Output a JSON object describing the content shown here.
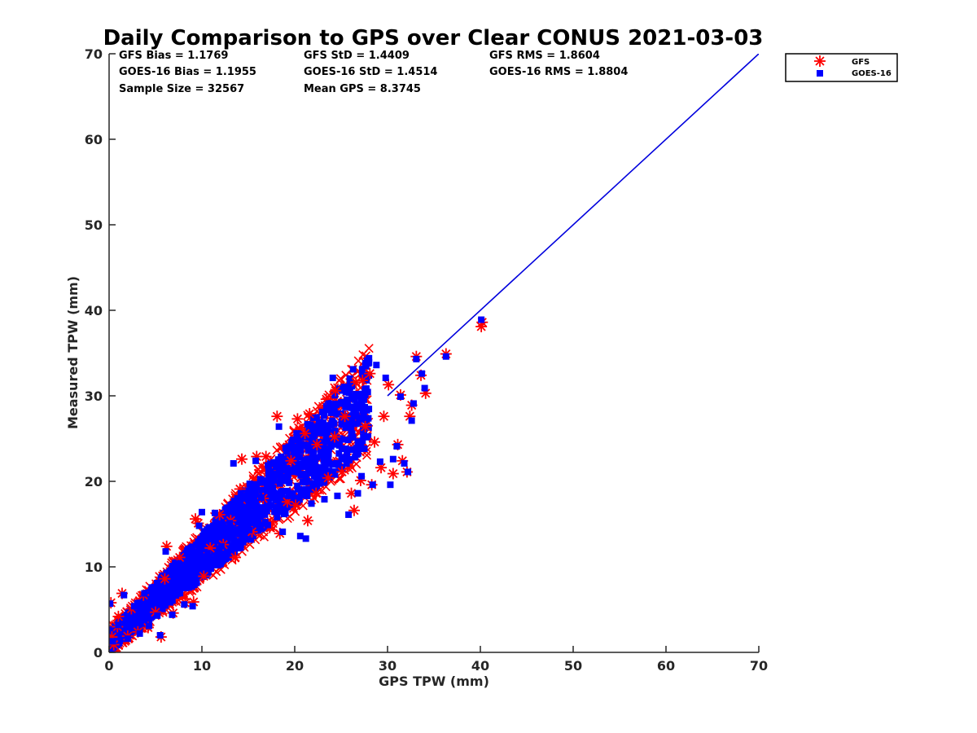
{
  "chart_data": {
    "type": "scatter",
    "title": "Daily Comparison to GPS over Clear CONUS 2021-03-03",
    "xlabel": "GPS TPW (mm)",
    "ylabel": "Measured TPW (mm)",
    "xlim": [
      0,
      70
    ],
    "ylim": [
      0,
      70
    ],
    "xticks": [
      "0",
      "10",
      "20",
      "30",
      "40",
      "50",
      "60",
      "70"
    ],
    "yticks": [
      "0",
      "10",
      "20",
      "30",
      "40",
      "50",
      "60",
      "70"
    ],
    "grid": false,
    "legend_position": "outside-top-right",
    "stats": [
      [
        "GFS Bias = 1.1769",
        "GFS StD = 1.4409",
        "GFS RMS = 1.8604"
      ],
      [
        "GOES-16 Bias = 1.1955",
        "GOES-16 StD = 1.4514",
        "GOES-16 RMS = 1.8804"
      ],
      [
        "Sample Size = 32567",
        "Mean GPS = 8.3745",
        ""
      ]
    ],
    "reference_line": {
      "name": "1:1 line",
      "x": [
        30,
        70
      ],
      "y": [
        30,
        70
      ],
      "color": "#0000dd"
    },
    "series": [
      {
        "name": "GFS",
        "marker": "asterisk",
        "color": "#ff0000",
        "points": [
          [
            0.5,
            0.9
          ],
          [
            0.3,
            1.8
          ],
          [
            0.9,
            3.0
          ],
          [
            1.4,
            6.9
          ],
          [
            0.2,
            5.8
          ],
          [
            1.0,
            4.2
          ],
          [
            2.0,
            1.9
          ],
          [
            2.4,
            5.1
          ],
          [
            3.1,
            2.4
          ],
          [
            3.7,
            6.7
          ],
          [
            4.2,
            2.9
          ],
          [
            5.0,
            4.7
          ],
          [
            5.6,
            1.8
          ],
          [
            6.2,
            12.4
          ],
          [
            6.0,
            8.6
          ],
          [
            6.9,
            4.6
          ],
          [
            7.6,
            11.1
          ],
          [
            8.2,
            5.8
          ],
          [
            9.1,
            5.9
          ],
          [
            9.6,
            15.1
          ],
          [
            9.3,
            15.6
          ],
          [
            10.2,
            8.9
          ],
          [
            10.9,
            12.2
          ],
          [
            11.9,
            16.1
          ],
          [
            12.3,
            12.6
          ],
          [
            13.1,
            15.4
          ],
          [
            13.6,
            11.1
          ],
          [
            14.3,
            22.6
          ],
          [
            14.1,
            19.1
          ],
          [
            15.4,
            14.1
          ],
          [
            15.9,
            22.9
          ],
          [
            16.6,
            18.0
          ],
          [
            16.9,
            22.9
          ],
          [
            17.3,
            14.6
          ],
          [
            18.1,
            27.6
          ],
          [
            18.4,
            13.9
          ],
          [
            19.2,
            17.6
          ],
          [
            19.6,
            22.4
          ],
          [
            20.1,
            17.2
          ],
          [
            20.3,
            27.3
          ],
          [
            21.1,
            25.6
          ],
          [
            21.4,
            15.4
          ],
          [
            21.6,
            27.9
          ],
          [
            22.3,
            18.6
          ],
          [
            22.4,
            24.3
          ],
          [
            23.4,
            29.6
          ],
          [
            23.6,
            20.4
          ],
          [
            24.4,
            30.6
          ],
          [
            24.3,
            25.2
          ],
          [
            25.1,
            21.1
          ],
          [
            25.4,
            27.6
          ],
          [
            26.1,
            18.6
          ],
          [
            26.4,
            16.6
          ],
          [
            26.6,
            31.6
          ],
          [
            27.1,
            20.1
          ],
          [
            27.3,
            31.8
          ],
          [
            27.6,
            26.4
          ],
          [
            28.1,
            32.6
          ],
          [
            28.3,
            19.6
          ],
          [
            28.6,
            24.6
          ],
          [
            29.3,
            21.6
          ],
          [
            29.6,
            27.6
          ],
          [
            30.1,
            31.3
          ],
          [
            30.6,
            20.9
          ],
          [
            31.1,
            24.3
          ],
          [
            31.4,
            30.1
          ],
          [
            31.6,
            22.4
          ],
          [
            32.1,
            21.1
          ],
          [
            32.4,
            27.6
          ],
          [
            32.6,
            28.9
          ],
          [
            33.1,
            34.6
          ],
          [
            33.6,
            32.4
          ],
          [
            34.1,
            30.3
          ],
          [
            36.3,
            34.9
          ],
          [
            40.1,
            38.1
          ],
          [
            40.2,
            38.6
          ]
        ]
      },
      {
        "name": "GOES-16",
        "marker": "square",
        "color": "#0000ff",
        "points": [
          [
            0.4,
            1.3
          ],
          [
            0.1,
            5.7
          ],
          [
            1.0,
            3.2
          ],
          [
            1.6,
            6.7
          ],
          [
            2.0,
            1.6
          ],
          [
            2.7,
            5.4
          ],
          [
            3.3,
            2.2
          ],
          [
            3.8,
            6.9
          ],
          [
            4.3,
            3.1
          ],
          [
            5.2,
            4.3
          ],
          [
            5.5,
            2.0
          ],
          [
            6.1,
            11.8
          ],
          [
            6.8,
            4.4
          ],
          [
            7.4,
            10.4
          ],
          [
            8.1,
            5.6
          ],
          [
            9.0,
            5.4
          ],
          [
            9.7,
            14.8
          ],
          [
            10.0,
            16.4
          ],
          [
            10.6,
            11.6
          ],
          [
            11.4,
            16.3
          ],
          [
            12.1,
            12.4
          ],
          [
            13.0,
            15.1
          ],
          [
            13.4,
            22.1
          ],
          [
            14.2,
            18.6
          ],
          [
            15.1,
            14.3
          ],
          [
            15.8,
            22.4
          ],
          [
            16.4,
            18.1
          ],
          [
            17.1,
            14.9
          ],
          [
            17.4,
            20.6
          ],
          [
            18.3,
            26.4
          ],
          [
            18.7,
            14.1
          ],
          [
            19.4,
            18.3
          ],
          [
            19.7,
            24.6
          ],
          [
            20.2,
            25.6
          ],
          [
            20.6,
            13.6
          ],
          [
            21.2,
            13.3
          ],
          [
            21.8,
            17.4
          ],
          [
            22.1,
            20.6
          ],
          [
            22.6,
            26.6
          ],
          [
            23.2,
            17.9
          ],
          [
            23.7,
            29.1
          ],
          [
            24.1,
            32.1
          ],
          [
            24.6,
            18.3
          ],
          [
            25.2,
            22.6
          ],
          [
            25.8,
            16.1
          ],
          [
            26.1,
            28.6
          ],
          [
            26.3,
            33.1
          ],
          [
            26.8,
            18.6
          ],
          [
            27.2,
            20.6
          ],
          [
            27.6,
            33.6
          ],
          [
            28.0,
            33.9
          ],
          [
            28.4,
            19.6
          ],
          [
            28.8,
            33.6
          ],
          [
            29.2,
            22.3
          ],
          [
            29.8,
            32.1
          ],
          [
            30.3,
            19.6
          ],
          [
            30.6,
            22.6
          ],
          [
            31.0,
            24.1
          ],
          [
            31.4,
            29.9
          ],
          [
            31.8,
            22.1
          ],
          [
            32.2,
            21.1
          ],
          [
            32.6,
            27.1
          ],
          [
            32.8,
            29.1
          ],
          [
            33.1,
            34.3
          ],
          [
            33.7,
            32.6
          ],
          [
            34.0,
            30.9
          ],
          [
            36.3,
            34.6
          ],
          [
            40.1,
            38.9
          ]
        ]
      }
    ]
  }
}
